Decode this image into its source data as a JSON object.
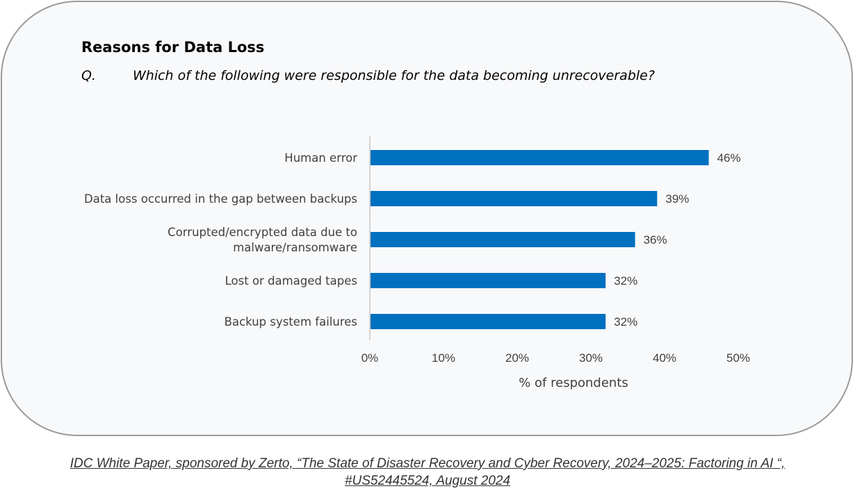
{
  "chart_data": {
    "type": "bar",
    "orientation": "horizontal",
    "title": "Reasons for Data Loss",
    "question_label": "Q.",
    "question": "Which of the following were responsible for the data becoming unrecoverable?",
    "categories": [
      [
        "Human error"
      ],
      [
        "Data loss occurred in the gap between backups"
      ],
      [
        "Corrupted/encrypted data due to",
        "malware/ransomware"
      ],
      [
        "Lost or damaged tapes"
      ],
      [
        "Backup system failures"
      ]
    ],
    "values": [
      46,
      39,
      36,
      32,
      32
    ],
    "value_labels": [
      "46%",
      "39%",
      "36%",
      "32%",
      "32%"
    ],
    "xlabel": "% of respondents",
    "xlim": [
      0,
      50
    ],
    "xticks": [
      0,
      10,
      20,
      30,
      40,
      50
    ],
    "xtick_labels": [
      "0%",
      "10%",
      "20%",
      "30%",
      "40%",
      "50%"
    ],
    "bar_color": "#0070c0",
    "grid": false
  },
  "source": {
    "line1": "IDC White Paper, sponsored by Zerto, “The State of Disaster Recovery and Cyber Recovery, 2024–2025: Factoring in AI “,",
    "line2": "#US52445524, August 2024"
  }
}
